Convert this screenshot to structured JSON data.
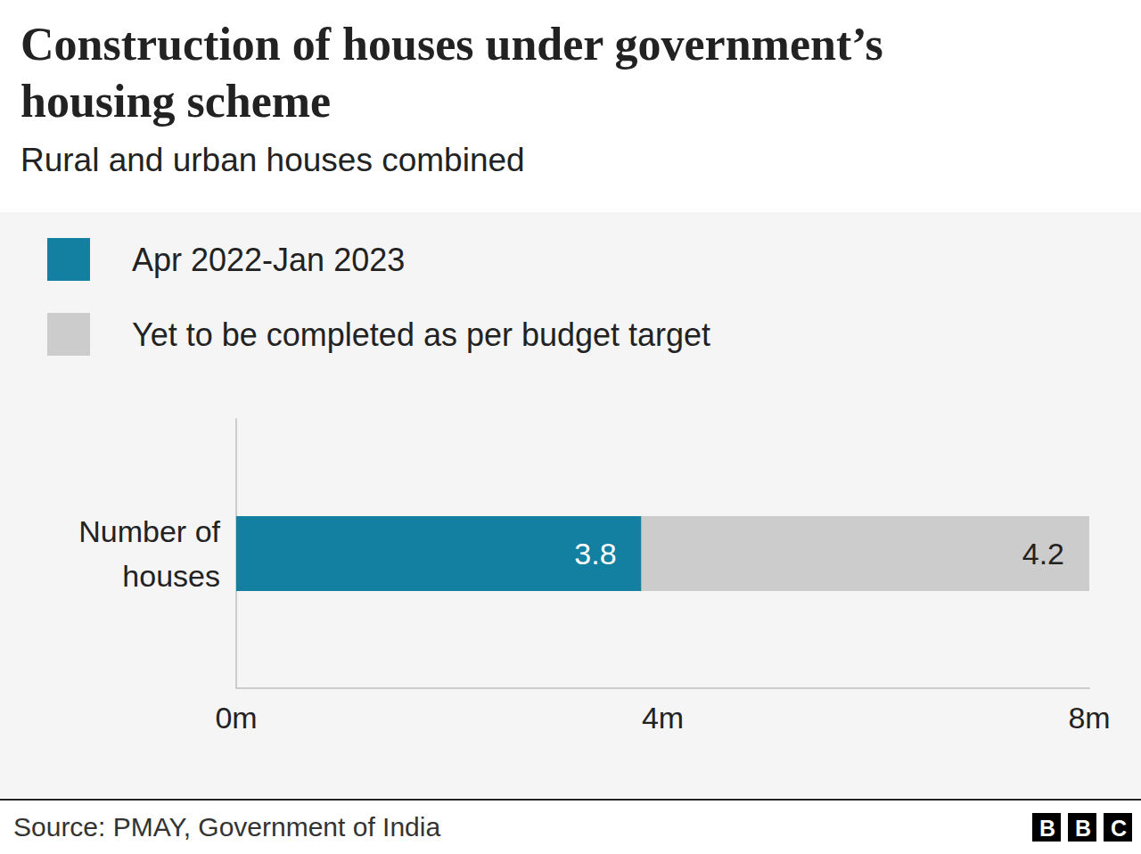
{
  "chart_data": {
    "type": "bar",
    "title": "Construction of houses under government’s housing scheme",
    "subtitle": "Rural and urban houses combined",
    "orientation": "horizontal",
    "stacked": true,
    "data_labels": true,
    "grid": false,
    "legend": "top-left",
    "categories": [
      "Number of houses"
    ],
    "series": [
      {
        "name": "Apr 2022-Jan 2023",
        "color": "#1380a1",
        "values": [
          3.8
        ]
      },
      {
        "name": "Yet to be completed as per budget target",
        "color": "#cccccc",
        "values": [
          4.2
        ]
      }
    ],
    "xlim": [
      0,
      8
    ],
    "xticks": [
      {
        "value": 0,
        "label": "0m"
      },
      {
        "value": 4,
        "label": "4m"
      },
      {
        "value": 8,
        "label": "8m"
      }
    ],
    "source": "Source: PMAY, Government of India",
    "branding": "BBC"
  }
}
